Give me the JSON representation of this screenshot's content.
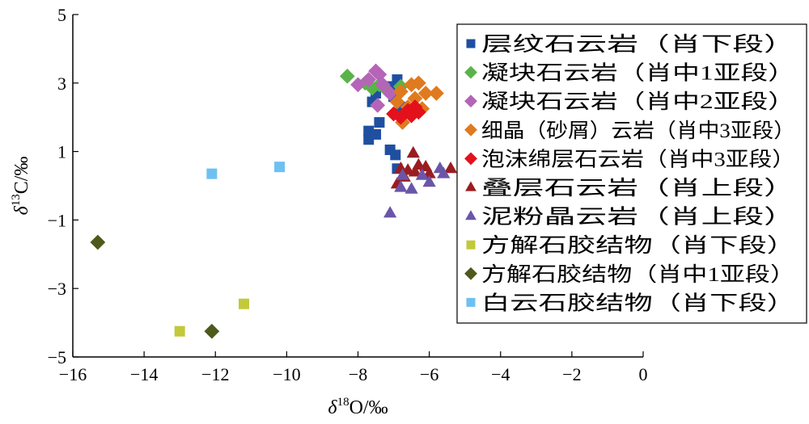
{
  "chart_data": {
    "type": "scatter",
    "xlim": [
      -16,
      0
    ],
    "ylim": [
      -5,
      5
    ],
    "xticks": [
      -16,
      -14,
      -12,
      -10,
      -8,
      -6,
      -4,
      -2,
      0
    ],
    "yticks": [
      -5,
      -3,
      -1,
      1,
      3,
      5
    ],
    "xtick_labels": [
      "−16",
      "−14",
      "−12",
      "−10",
      "−8",
      "−6",
      "−4",
      "−2",
      "0"
    ],
    "ytick_labels": [
      "−5",
      "−3",
      "−1",
      "1",
      "3",
      "5"
    ],
    "xlabel": {
      "symbol": "δ",
      "sup": "18",
      "rest": "O/‰"
    },
    "ylabel": {
      "symbol": "δ",
      "sup": "13",
      "rest": "C/‰"
    },
    "grid": false,
    "legend_position": "right",
    "series": [
      {
        "name": "层纹石云岩（肖下段）",
        "marker": "square",
        "color": "#1f4fa0",
        "points": [
          [
            -6.9,
            3.1
          ],
          [
            -7.1,
            2.9
          ],
          [
            -7.5,
            2.7
          ],
          [
            -7.0,
            2.6
          ],
          [
            -7.6,
            2.45
          ],
          [
            -6.8,
            2.3
          ],
          [
            -6.9,
            2.1
          ],
          [
            -7.4,
            1.85
          ],
          [
            -7.7,
            1.6
          ],
          [
            -7.5,
            1.5
          ],
          [
            -7.7,
            1.35
          ],
          [
            -7.1,
            1.05
          ],
          [
            -6.95,
            0.9
          ],
          [
            -6.9,
            0.5
          ]
        ]
      },
      {
        "name": "凝块石云岩（肖中1亚段）",
        "marker": "diamond",
        "color": "#5ab34a",
        "points": [
          [
            -8.3,
            3.2
          ],
          [
            -7.8,
            3.0
          ],
          [
            -7.6,
            2.85
          ],
          [
            -7.4,
            2.95
          ],
          [
            -7.2,
            2.8
          ],
          [
            -6.8,
            2.9
          ]
        ]
      },
      {
        "name": "凝块石云岩（肖中2亚段）",
        "marker": "diamond",
        "color": "#b564b8",
        "points": [
          [
            -8.0,
            2.95
          ],
          [
            -7.5,
            3.35
          ],
          [
            -7.4,
            3.25
          ],
          [
            -7.7,
            3.1
          ],
          [
            -7.3,
            2.95
          ],
          [
            -7.1,
            2.7
          ],
          [
            -7.45,
            2.35
          ]
        ]
      },
      {
        "name": "细晶（砂屑）云岩（肖中3亚段）",
        "marker": "diamond",
        "color": "#e07a1e",
        "points": [
          [
            -6.8,
            2.75
          ],
          [
            -6.5,
            2.95
          ],
          [
            -6.3,
            3.0
          ],
          [
            -6.1,
            2.7
          ],
          [
            -5.8,
            2.7
          ],
          [
            -6.4,
            2.55
          ],
          [
            -6.9,
            2.45
          ],
          [
            -6.6,
            2.3
          ],
          [
            -6.2,
            2.25
          ],
          [
            -6.75,
            1.85
          ]
        ]
      },
      {
        "name": "泡沫绵层石云岩（肖中3亚段）",
        "marker": "diamond",
        "color": "#e3111b",
        "points": [
          [
            -7.0,
            2.1
          ],
          [
            -6.8,
            2.0
          ],
          [
            -6.6,
            2.2
          ],
          [
            -6.4,
            2.3
          ],
          [
            -6.5,
            2.05
          ],
          [
            -6.3,
            2.15
          ]
        ]
      },
      {
        "name": "叠层石云岩（肖上段）",
        "marker": "triangle",
        "color": "#9b1c20",
        "points": [
          [
            -6.45,
            0.95
          ],
          [
            -6.3,
            0.6
          ],
          [
            -6.1,
            0.55
          ],
          [
            -5.4,
            0.5
          ],
          [
            -6.8,
            0.5
          ],
          [
            -6.6,
            0.45
          ],
          [
            -6.4,
            0.4
          ],
          [
            -6.0,
            0.35
          ],
          [
            -6.9,
            0.05
          ],
          [
            -6.7,
            0.25
          ]
        ]
      },
      {
        "name": "泥粉晶云岩（肖上段）",
        "marker": "triangle",
        "color": "#6a56a8",
        "points": [
          [
            -7.1,
            -0.8
          ],
          [
            -6.8,
            -0.05
          ],
          [
            -6.5,
            -0.1
          ],
          [
            -6.2,
            0.3
          ],
          [
            -6.0,
            0.1
          ],
          [
            -5.7,
            0.5
          ],
          [
            -5.6,
            0.35
          ],
          [
            -6.75,
            0.3
          ]
        ]
      },
      {
        "name": "方解石胶结物（肖下段）",
        "marker": "square",
        "color": "#c2c93a",
        "points": [
          [
            -13.0,
            -4.25
          ],
          [
            -11.2,
            -3.45
          ]
        ]
      },
      {
        "name": "方解石胶结物（肖中1亚段）",
        "marker": "diamond",
        "color": "#4d5a1b",
        "points": [
          [
            -15.3,
            -1.65
          ],
          [
            -12.1,
            -4.25
          ]
        ]
      },
      {
        "name": "白云石胶结物（肖下段）",
        "marker": "square",
        "color": "#6ec0f2",
        "points": [
          [
            -12.1,
            0.35
          ],
          [
            -10.2,
            0.55
          ]
        ]
      }
    ]
  }
}
